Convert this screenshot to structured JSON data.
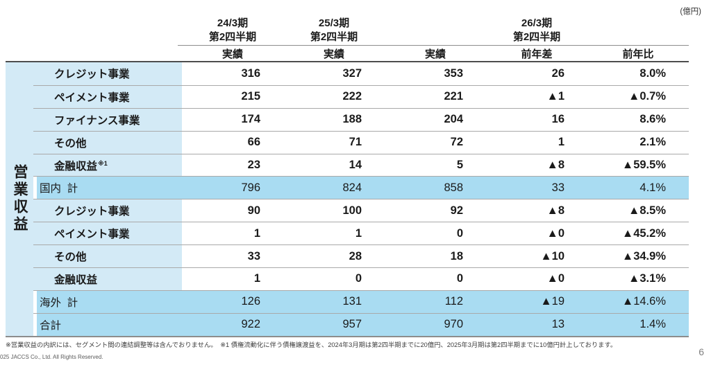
{
  "unit_label": "(億円)",
  "page_number": "6",
  "vertical_axis_label": "営業収益",
  "header": {
    "periods": [
      {
        "line1": "24/3期",
        "line2": "第2四半期"
      },
      {
        "line1": "25/3期",
        "line2": "第2四半期"
      },
      {
        "line1": "26/3期",
        "line2": "第2四半期"
      }
    ],
    "sub_columns": [
      "実績",
      "実績",
      "実績",
      "前年差",
      "前年比"
    ]
  },
  "rows": [
    {
      "label": "クレジット事業",
      "sup": "",
      "indent": "sub",
      "highlight": false,
      "values": [
        "316",
        "327",
        "353",
        "26",
        "8.0%"
      ]
    },
    {
      "label": "ペイメント事業",
      "sup": "",
      "indent": "sub",
      "highlight": false,
      "values": [
        "215",
        "222",
        "221",
        "▲1",
        "▲0.7%"
      ]
    },
    {
      "label": "ファイナンス事業",
      "sup": "",
      "indent": "sub",
      "highlight": false,
      "values": [
        "174",
        "188",
        "204",
        "16",
        "8.6%"
      ]
    },
    {
      "label": "その他",
      "sup": "",
      "indent": "sub",
      "highlight": false,
      "values": [
        "66",
        "71",
        "72",
        "1",
        "2.1%"
      ]
    },
    {
      "label": "金融収益",
      "sup": "※1",
      "indent": "sub",
      "highlight": false,
      "values": [
        "23",
        "14",
        "5",
        "▲8",
        "▲59.5%"
      ]
    },
    {
      "label": "国内  計",
      "sup": "",
      "indent": "total",
      "highlight": true,
      "values": [
        "796",
        "824",
        "858",
        "33",
        "4.1%"
      ]
    },
    {
      "label": "クレジット事業",
      "sup": "",
      "indent": "sub",
      "highlight": false,
      "values": [
        "90",
        "100",
        "92",
        "▲8",
        "▲8.5%"
      ]
    },
    {
      "label": "ペイメント事業",
      "sup": "",
      "indent": "sub",
      "highlight": false,
      "values": [
        "1",
        "1",
        "0",
        "▲0",
        "▲45.2%"
      ]
    },
    {
      "label": "その他",
      "sup": "",
      "indent": "sub",
      "highlight": false,
      "values": [
        "33",
        "28",
        "18",
        "▲10",
        "▲34.9%"
      ]
    },
    {
      "label": "金融収益",
      "sup": "",
      "indent": "sub",
      "highlight": false,
      "values": [
        "1",
        "0",
        "0",
        "▲0",
        "▲3.1%"
      ]
    },
    {
      "label": "海外  計",
      "sup": "",
      "indent": "total",
      "highlight": true,
      "values": [
        "126",
        "131",
        "112",
        "▲19",
        "▲14.6%"
      ]
    },
    {
      "label": "合計",
      "sup": "",
      "indent": "total",
      "highlight": true,
      "values": [
        "922",
        "957",
        "970",
        "13",
        "1.4%"
      ]
    }
  ],
  "footnote": "※営業収益の内訳には、セグメント間の連結調整等は含んでおりません。　※1 債権流動化に伴う債権譲渡益を、2024年3月期は第2四半期までに20億円、2025年3月期は第2四半期までに10億円計上しております。",
  "copyright": "025 JACCS Co., Ltd. All Rights Reserved.",
  "colors": {
    "label_bg": "#d3eaf6",
    "highlight_bg": "#a9dcf2",
    "separator": "#a9a9a9",
    "header_rule": "#4d4d4d"
  }
}
